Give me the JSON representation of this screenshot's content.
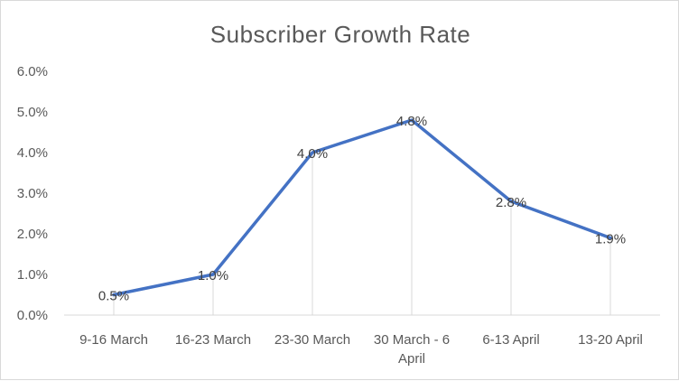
{
  "chart_data": {
    "type": "line",
    "title": "Subscriber Growth Rate",
    "xlabel": "",
    "ylabel": "",
    "categories": [
      "9-16 March",
      "16-23 March",
      "23-30 March",
      "30 March - 6 April",
      "6-13 April",
      "13-20 April"
    ],
    "category_lines": [
      [
        "9-16 March"
      ],
      [
        "16-23 March"
      ],
      [
        "23-30 March"
      ],
      [
        "30 March  - 6",
        "April"
      ],
      [
        "6-13 April"
      ],
      [
        "13-20 April"
      ]
    ],
    "values": [
      0.5,
      1.0,
      4.0,
      4.8,
      2.8,
      1.9
    ],
    "data_labels": [
      "0.5%",
      "1.0%",
      "4.0%",
      "4.8%",
      "2.8%",
      "1.9%"
    ],
    "yticks": [
      "0.0%",
      "1.0%",
      "2.0%",
      "3.0%",
      "4.0%",
      "5.0%",
      "6.0%"
    ],
    "ylim": [
      0,
      6
    ],
    "grid": false,
    "drop_lines": true,
    "legend": "none",
    "colors": {
      "line": "#4472C4",
      "drop_line": "#d9d9d9",
      "text": "#595959",
      "axis": "#d9d9d9"
    }
  }
}
